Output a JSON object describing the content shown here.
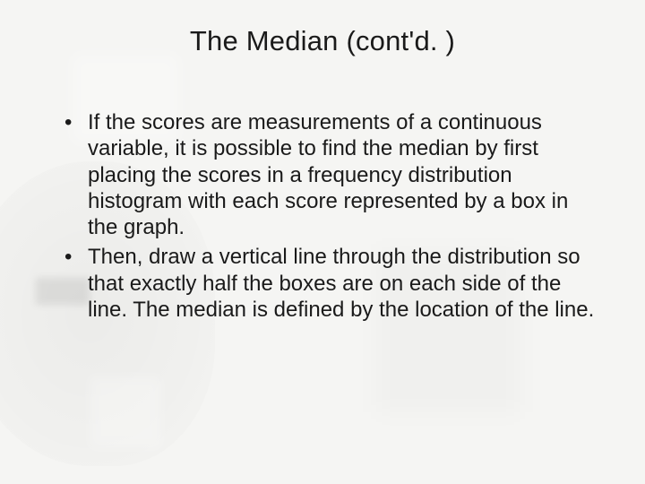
{
  "slide": {
    "title": "The Median (cont'd. )",
    "bullets": [
      "If the scores are measurements of a continuous variable, it is possible to find the median by first placing the scores in a frequency distribution histogram with each score represented by a box in the graph.",
      "Then, draw a vertical line through the distribution so that exactly half the boxes are on each side of the line. The median is defined by the location of the line."
    ],
    "colors": {
      "background": "#f5f5f3",
      "text": "#1a1a1a"
    },
    "typography": {
      "title_fontsize": 31,
      "body_fontsize": 24,
      "font_family": "Arial"
    }
  }
}
